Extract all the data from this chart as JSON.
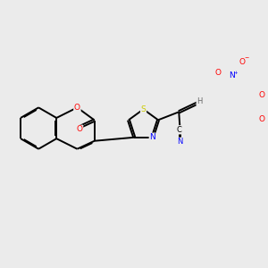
{
  "background_color": "#ebebeb",
  "bond_color": "#000000",
  "atom_colors": {
    "S": "#cccc00",
    "N": "#0000ff",
    "O": "#ff0000",
    "C": "#000000",
    "H": "#666666"
  },
  "figsize": [
    3.0,
    3.0
  ],
  "dpi": 100,
  "lw": 1.4,
  "dbl_off": 0.018,
  "fs": 6.5
}
